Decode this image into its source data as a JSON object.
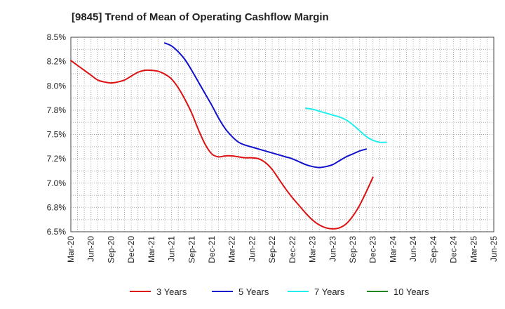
{
  "chart_data": {
    "type": "line",
    "title": "[9845]  Trend of Mean of Operating Cashflow Margin",
    "xlabel": "",
    "ylabel": "",
    "ylim": [
      6.5,
      8.5
    ],
    "grid": true,
    "legend_position": "bottom",
    "x_ticks": [
      "Mar-20",
      "Jun-20",
      "Sep-20",
      "Dec-20",
      "Mar-21",
      "Jun-21",
      "Sep-21",
      "Dec-21",
      "Mar-22",
      "Jun-22",
      "Sep-22",
      "Dec-22",
      "Mar-23",
      "Jun-23",
      "Sep-23",
      "Dec-23",
      "Mar-24",
      "Jun-24",
      "Sep-24",
      "Dec-24",
      "Mar-25",
      "Jun-25"
    ],
    "y_ticks": [
      {
        "value": 6.5,
        "label": "6.5%"
      },
      {
        "value": 6.75,
        "label": "6.8%"
      },
      {
        "value": 7.0,
        "label": "7.0%"
      },
      {
        "value": 7.25,
        "label": "7.2%"
      },
      {
        "value": 7.5,
        "label": "7.5%"
      },
      {
        "value": 7.75,
        "label": "7.8%"
      },
      {
        "value": 8.0,
        "label": "8.0%"
      },
      {
        "value": 8.25,
        "label": "8.2%"
      },
      {
        "value": 8.5,
        "label": "8.5%"
      }
    ],
    "series": [
      {
        "name": "3 Years",
        "color": "#dd1111",
        "points": [
          [
            0,
            8.26
          ],
          [
            1,
            8.21
          ],
          [
            2,
            8.16
          ],
          [
            3,
            8.11
          ],
          [
            4,
            8.06
          ],
          [
            5,
            8.04
          ],
          [
            6,
            8.03
          ],
          [
            7,
            8.04
          ],
          [
            8,
            8.06
          ],
          [
            9,
            8.1
          ],
          [
            10,
            8.14
          ],
          [
            11,
            8.16
          ],
          [
            12,
            8.16
          ],
          [
            13,
            8.15
          ],
          [
            14,
            8.12
          ],
          [
            15,
            8.07
          ],
          [
            16,
            7.98
          ],
          [
            17,
            7.86
          ],
          [
            18,
            7.72
          ],
          [
            19,
            7.55
          ],
          [
            20,
            7.4
          ],
          [
            21,
            7.3
          ],
          [
            22,
            7.27
          ],
          [
            23,
            7.28
          ],
          [
            24,
            7.28
          ],
          [
            25,
            7.27
          ],
          [
            26,
            7.26
          ],
          [
            27,
            7.26
          ],
          [
            28,
            7.25
          ],
          [
            29,
            7.21
          ],
          [
            30,
            7.14
          ],
          [
            31,
            7.04
          ],
          [
            32,
            6.94
          ],
          [
            33,
            6.85
          ],
          [
            34,
            6.77
          ],
          [
            35,
            6.69
          ],
          [
            36,
            6.62
          ],
          [
            37,
            6.57
          ],
          [
            38,
            6.54
          ],
          [
            39,
            6.53
          ],
          [
            40,
            6.54
          ],
          [
            41,
            6.58
          ],
          [
            42,
            6.66
          ],
          [
            43,
            6.77
          ],
          [
            44,
            6.91
          ],
          [
            45,
            7.06
          ]
        ]
      },
      {
        "name": "5 Years",
        "color": "#1111cc",
        "points": [
          [
            14,
            8.44
          ],
          [
            15,
            8.41
          ],
          [
            16,
            8.35
          ],
          [
            17,
            8.27
          ],
          [
            18,
            8.16
          ],
          [
            19,
            8.04
          ],
          [
            20,
            7.92
          ],
          [
            21,
            7.8
          ],
          [
            22,
            7.67
          ],
          [
            23,
            7.56
          ],
          [
            24,
            7.48
          ],
          [
            25,
            7.42
          ],
          [
            26,
            7.39
          ],
          [
            27,
            7.37
          ],
          [
            28,
            7.35
          ],
          [
            29,
            7.33
          ],
          [
            30,
            7.31
          ],
          [
            31,
            7.29
          ],
          [
            32,
            7.27
          ],
          [
            33,
            7.25
          ],
          [
            34,
            7.22
          ],
          [
            35,
            7.19
          ],
          [
            36,
            7.17
          ],
          [
            37,
            7.16
          ],
          [
            38,
            7.17
          ],
          [
            39,
            7.19
          ],
          [
            40,
            7.23
          ],
          [
            41,
            7.27
          ],
          [
            42,
            7.3
          ],
          [
            43,
            7.33
          ],
          [
            44,
            7.35
          ]
        ]
      },
      {
        "name": "7 Years",
        "color": "#22eeee",
        "points": [
          [
            35,
            7.77
          ],
          [
            36,
            7.76
          ],
          [
            37,
            7.74
          ],
          [
            38,
            7.72
          ],
          [
            39,
            7.7
          ],
          [
            40,
            7.68
          ],
          [
            41,
            7.65
          ],
          [
            42,
            7.6
          ],
          [
            43,
            7.54
          ],
          [
            44,
            7.48
          ],
          [
            45,
            7.44
          ],
          [
            46,
            7.42
          ],
          [
            47,
            7.42
          ]
        ]
      },
      {
        "name": "10 Years",
        "color": "#228822",
        "points": []
      }
    ]
  }
}
